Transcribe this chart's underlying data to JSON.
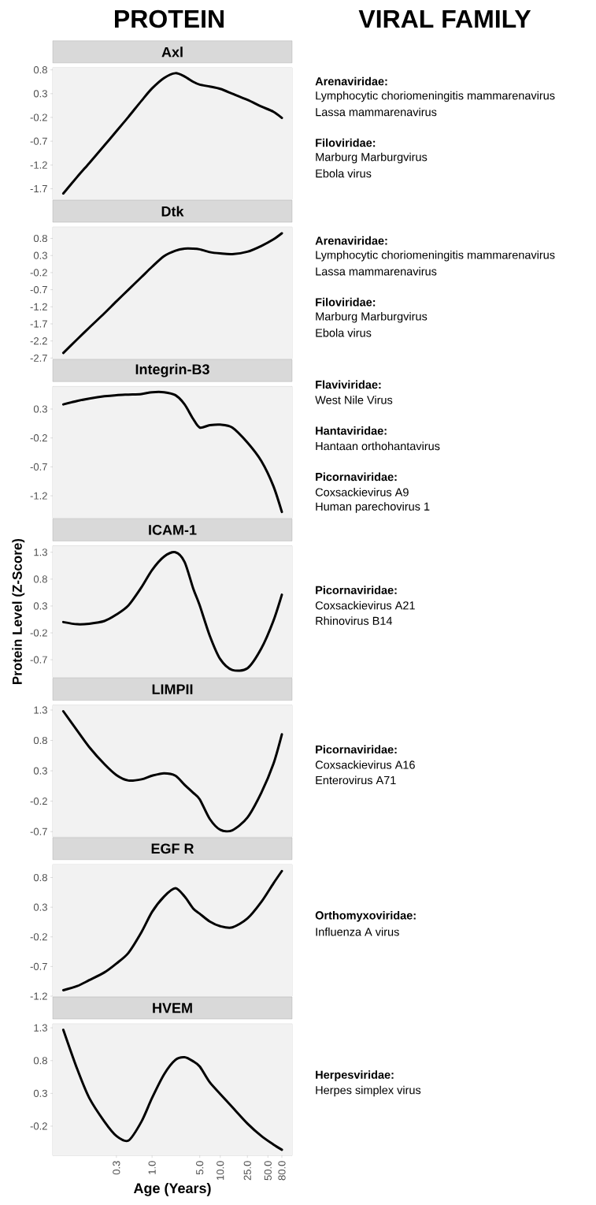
{
  "chart_data": [
    {
      "type": "other",
      "annotations": [
        "PROTEIN",
        "VIRAL FAMILY"
      ]
    },
    {
      "type": "line",
      "title": "Axl",
      "log": "x",
      "tick_labels": "y",
      "xlim": [
        0.035,
        113
      ],
      "ylim": [
        -1.924,
        0.844
      ],
      "yticks": [
        -1.7,
        -1.2,
        -0.7,
        -0.2,
        0.3,
        0.8
      ],
      "x": [
        0.05,
        0.08,
        0.12,
        0.2,
        0.3,
        0.45,
        0.7,
        1,
        1.5,
        2.2,
        3,
        4,
        5,
        7,
        10,
        15,
        25,
        40,
        60,
        80
      ],
      "series": [
        {
          "color": "#000000",
          "values": [
            -1.8,
            -1.45,
            -1.16,
            -0.79,
            -0.49,
            -0.19,
            0.15,
            0.41,
            0.63,
            0.73,
            0.66,
            0.55,
            0.49,
            0.45,
            0.4,
            0.3,
            0.17,
            0.03,
            -0.08,
            -0.21
          ]
        }
      ],
      "annotations": [
        "**Arenaviridae:**",
        "Lymphocytic choriomeningitis mammarenavirus",
        "Lassa mammarenavirus",
        "**Filoviridae:**",
        "Marburg Marburgvirus",
        "Ebola virus"
      ]
    },
    {
      "type": "line",
      "title": "Dtk",
      "log": "x",
      "tick_labels": "y",
      "xlim": [
        0.035,
        113
      ],
      "ylim": [
        -2.72,
        1.13
      ],
      "yticks": [
        -2.7,
        -2.2,
        -1.7,
        -1.2,
        -0.7,
        -0.2,
        0.3,
        0.8
      ],
      "x": [
        0.05,
        0.08,
        0.12,
        0.2,
        0.3,
        0.45,
        0.7,
        1,
        1.5,
        2.2,
        3,
        4,
        5,
        7,
        10,
        15,
        25,
        40,
        60,
        80
      ],
      "series": [
        {
          "color": "#000000",
          "values": [
            -2.55,
            -2.15,
            -1.81,
            -1.39,
            -1.04,
            -0.7,
            -0.33,
            -0.03,
            0.28,
            0.44,
            0.5,
            0.5,
            0.48,
            0.4,
            0.36,
            0.34,
            0.41,
            0.58,
            0.77,
            0.95
          ]
        }
      ],
      "annotations": [
        "**Arenaviridae:**",
        "Lymphocytic choriomeningitis mammarenavirus",
        "Lassa mammarenavirus",
        "**Filoviridae:**",
        "Marburg Marburgvirus",
        "Ebola virus"
      ]
    },
    {
      "type": "line",
      "title": "Integrin-B3",
      "log": "x",
      "tick_labels": "y",
      "xlim": [
        0.035,
        113
      ],
      "ylim": [
        -1.586,
        0.69
      ],
      "yticks": [
        -1.2,
        -0.7,
        -0.2,
        0.3
      ],
      "x": [
        0.05,
        0.08,
        0.12,
        0.2,
        0.3,
        0.45,
        0.7,
        1,
        1.5,
        2.2,
        3,
        4,
        5,
        7,
        10,
        15,
        25,
        40,
        60,
        80
      ],
      "series": [
        {
          "color": "#000000",
          "values": [
            0.38,
            0.44,
            0.48,
            0.52,
            0.54,
            0.55,
            0.56,
            0.59,
            0.59,
            0.54,
            0.38,
            0.13,
            -0.02,
            0.02,
            0.03,
            -0.02,
            -0.28,
            -0.6,
            -1.03,
            -1.48
          ]
        }
      ],
      "annotations": [
        "**Flaviviridae:**",
        "West Nile Virus",
        "**Hantaviridae:**",
        "Hantaan orthohantavirus",
        "**Picornaviridae:**",
        "Coxsackievirus A9",
        "Human parechovirus 1"
      ]
    },
    {
      "type": "line",
      "title": "ICAM-1",
      "ylabel": "Protein Level (Z-Score)",
      "log": "x",
      "tick_labels": "y",
      "xlim": [
        0.035,
        113
      ],
      "ylim": [
        -1.03,
        1.42
      ],
      "yticks": [
        -0.7,
        -0.2,
        0.3,
        0.8,
        1.3
      ],
      "x": [
        0.05,
        0.08,
        0.12,
        0.2,
        0.3,
        0.45,
        0.7,
        1,
        1.5,
        2.2,
        3,
        4,
        5,
        7,
        10,
        15,
        25,
        40,
        60,
        80
      ],
      "series": [
        {
          "color": "#000000",
          "values": [
            0.0,
            -0.04,
            -0.03,
            0.02,
            0.14,
            0.31,
            0.65,
            0.97,
            1.22,
            1.3,
            1.12,
            0.63,
            0.31,
            -0.25,
            -0.69,
            -0.89,
            -0.86,
            -0.49,
            0.02,
            0.51
          ]
        }
      ],
      "annotations": [
        "**Picornaviridae:**",
        "Coxsackievirus A21",
        "Rhinovirus B14"
      ]
    },
    {
      "type": "line",
      "title": "LIMPII",
      "log": "x",
      "tick_labels": "y",
      "xlim": [
        0.035,
        113
      ],
      "ylim": [
        -0.786,
        1.38
      ],
      "yticks": [
        -0.7,
        -0.2,
        0.3,
        0.8,
        1.3
      ],
      "x": [
        0.05,
        0.08,
        0.12,
        0.2,
        0.3,
        0.45,
        0.7,
        1,
        1.5,
        2.2,
        3,
        4,
        5,
        7,
        10,
        15,
        25,
        40,
        60,
        80
      ],
      "series": [
        {
          "color": "#000000",
          "values": [
            1.28,
            0.96,
            0.69,
            0.41,
            0.23,
            0.14,
            0.16,
            0.22,
            0.26,
            0.22,
            0.07,
            -0.06,
            -0.17,
            -0.49,
            -0.67,
            -0.68,
            -0.47,
            -0.06,
            0.41,
            0.9
          ]
        }
      ],
      "annotations": [
        "**Picornaviridae:**",
        "Coxsackievirus A16",
        "Enterovirus A71"
      ]
    },
    {
      "type": "line",
      "title": "EGF R",
      "log": "x",
      "tick_labels": "y",
      "xlim": [
        0.035,
        113
      ],
      "ylim": [
        -1.2,
        1.02
      ],
      "yticks": [
        -1.2,
        -0.7,
        -0.2,
        0.3,
        0.8
      ],
      "x": [
        0.05,
        0.08,
        0.12,
        0.2,
        0.3,
        0.45,
        0.7,
        1,
        1.5,
        2.2,
        3,
        4,
        5,
        7,
        10,
        15,
        25,
        40,
        60,
        80
      ],
      "series": [
        {
          "color": "#000000",
          "values": [
            -1.1,
            -1.03,
            -0.93,
            -0.8,
            -0.65,
            -0.47,
            -0.12,
            0.22,
            0.48,
            0.62,
            0.48,
            0.28,
            0.19,
            0.06,
            -0.02,
            -0.04,
            0.11,
            0.39,
            0.7,
            0.91
          ]
        }
      ],
      "annotations": [
        "**Orthomyxoviridae:**",
        "Influenza A virus"
      ]
    },
    {
      "type": "line",
      "title": "HVEM",
      "xlabel": "Age (Years)",
      "log": "x",
      "xlim": [
        0.035,
        113
      ],
      "ylim": [
        -0.648,
        1.36
      ],
      "yticks": [
        -0.2,
        0.3,
        0.8,
        1.3
      ],
      "xticks": [
        {
          "value": 0.3,
          "label": "0.3"
        },
        {
          "value": 1,
          "label": "1.0"
        },
        {
          "value": 5,
          "label": "5.0"
        },
        {
          "value": 10,
          "label": "10.0"
        },
        {
          "value": 25,
          "label": "25.0"
        },
        {
          "value": 50,
          "label": "50.0"
        },
        {
          "value": 80,
          "label": "80.0"
        }
      ],
      "x": [
        0.05,
        0.08,
        0.12,
        0.2,
        0.3,
        0.45,
        0.7,
        1,
        1.5,
        2.2,
        3,
        4,
        5,
        7,
        10,
        15,
        25,
        40,
        60,
        80
      ],
      "series": [
        {
          "color": "#000000",
          "values": [
            1.27,
            0.67,
            0.23,
            -0.13,
            -0.35,
            -0.42,
            -0.13,
            0.23,
            0.59,
            0.81,
            0.85,
            0.79,
            0.71,
            0.47,
            0.29,
            0.09,
            -0.16,
            -0.35,
            -0.48,
            -0.56
          ]
        }
      ],
      "annotations": [
        "**Herpesviridae:**",
        "Herpes simplex virus"
      ]
    }
  ]
}
